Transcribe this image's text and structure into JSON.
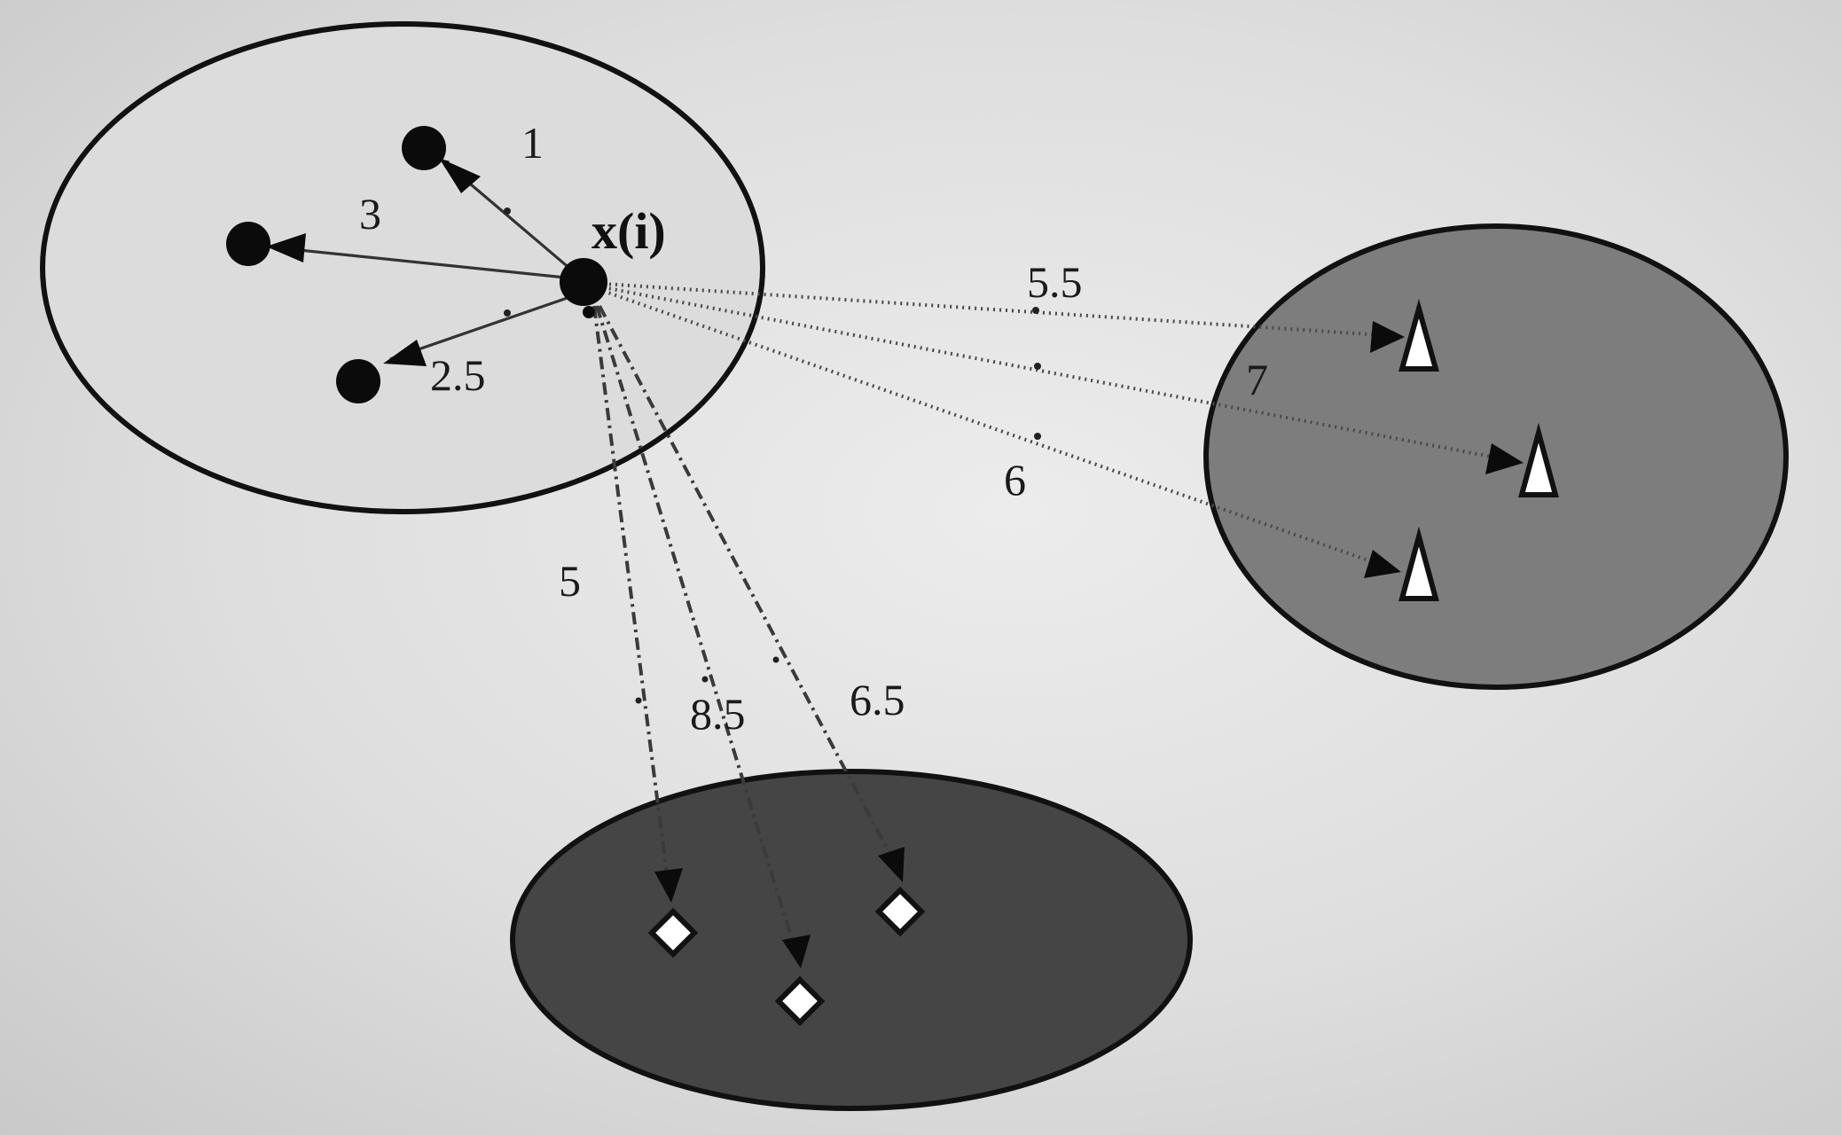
{
  "center_node": {
    "label": "x(i)"
  },
  "edges": {
    "own_cluster": [
      {
        "label": "1"
      },
      {
        "label": "3"
      },
      {
        "label": "2.5"
      }
    ],
    "triangle_cluster": [
      {
        "label": "5.5"
      },
      {
        "label": "7"
      },
      {
        "label": "6"
      }
    ],
    "diamond_cluster": [
      {
        "label": "5"
      },
      {
        "label": "8.5"
      },
      {
        "label": "6.5"
      }
    ]
  },
  "colors": {
    "background": "#e3e3e3",
    "own_cluster_fill": "#dcdcdc",
    "triangle_cluster_fill": "#7d7d7d",
    "diamond_cluster_fill": "#454545",
    "node_fill": "#0b0b0b",
    "marker_fill": "#ffffff"
  }
}
